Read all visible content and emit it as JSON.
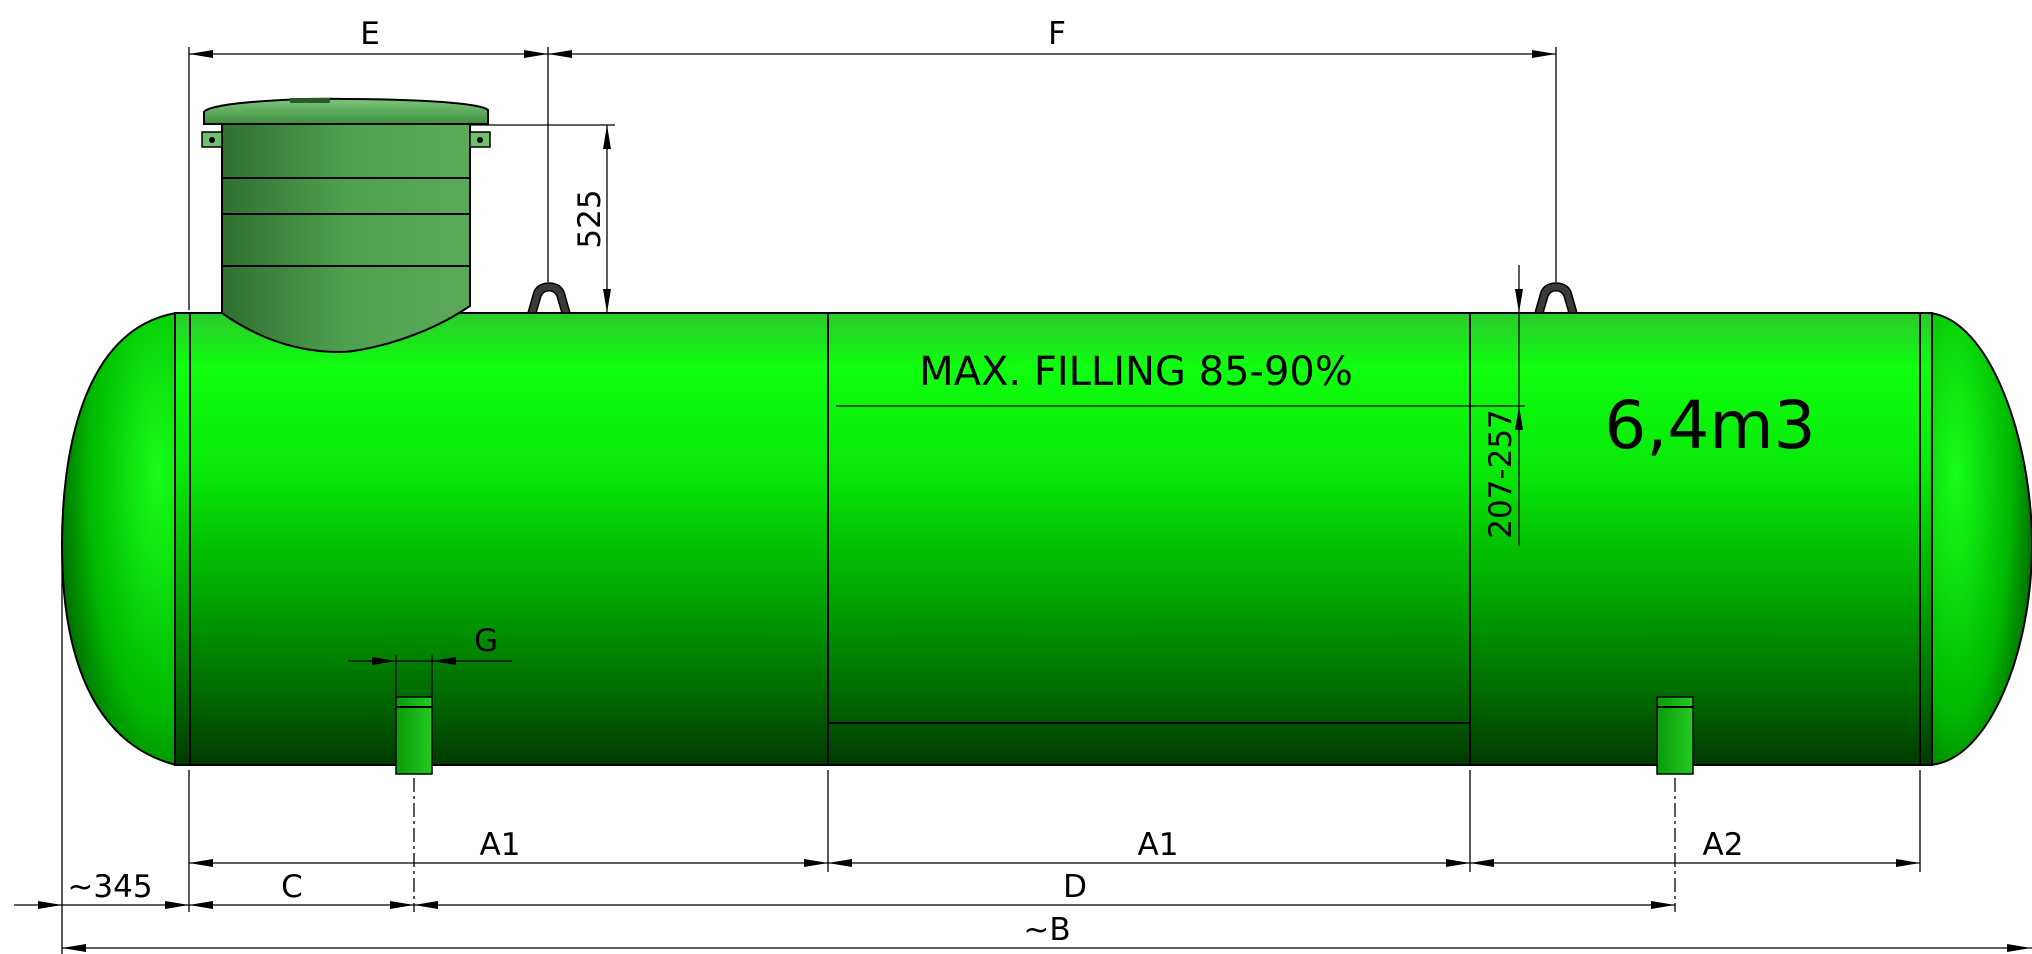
{
  "tank": {
    "max_filling_label": "MAX. FILLING 85-90%",
    "volume_label": "6,4m3",
    "colors": {
      "body_light": "#10ff10",
      "body_mid": "#00c000",
      "body_dark": "#003f00",
      "dome": "#3f9f3f",
      "edge": "#000000"
    }
  },
  "dimensions": {
    "E": "E",
    "F": "F",
    "dome_height": "525",
    "fill_range": "207-257",
    "G": "G",
    "A1_left": "A1",
    "A1_right": "A1",
    "A2": "A2",
    "offset": "~345",
    "C": "C",
    "D": "D",
    "B": "~B"
  }
}
